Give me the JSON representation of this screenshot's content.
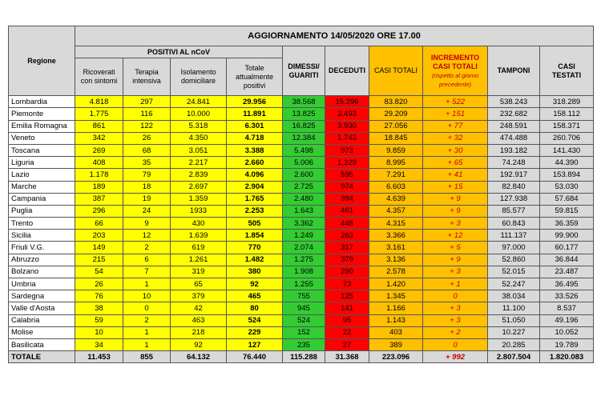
{
  "header": {
    "title": "AGGIORNAMENTO 14/05/2020 ORE 17.00",
    "region": "Regione",
    "group": "POSITIVI AL nCoV",
    "columns": [
      "Ricoverati con sintomi",
      "Terapia intensiva",
      "Isolamento domiciliare",
      "Totale attualmente positivi",
      "DIMESSI/ GUARITI",
      "DECEDUTI",
      "CASI TOTALI",
      "INCREMENTO CASI TOTALI",
      "TAMPONI",
      "CASI TESTATI"
    ],
    "increment_note": "(rispetto al giorno precedente)"
  },
  "table": {
    "rows": [
      [
        "Lombardia",
        "4.818",
        "297",
        "24.841",
        "29.956",
        "38.568",
        "15.296",
        "83.820",
        "+ 522",
        "538.243",
        "318.289"
      ],
      [
        "Piemonte",
        "1.775",
        "116",
        "10.000",
        "11.891",
        "13.825",
        "3.493",
        "29.209",
        "+ 151",
        "232.682",
        "158.112"
      ],
      [
        "Emilia Romagna",
        "861",
        "122",
        "5.318",
        "6.301",
        "16.825",
        "3.930",
        "27.056",
        "+ 77",
        "248.591",
        "158.371"
      ],
      [
        "Veneto",
        "342",
        "26",
        "4.350",
        "4.718",
        "12.384",
        "1.743",
        "18.845",
        "+ 32",
        "474.488",
        "260.706"
      ],
      [
        "Toscana",
        "269",
        "68",
        "3.051",
        "3.388",
        "5.498",
        "973",
        "9.859",
        "+ 30",
        "193.182",
        "141.430"
      ],
      [
        "Liguria",
        "408",
        "35",
        "2.217",
        "2.660",
        "5.006",
        "1.329",
        "8.995",
        "+ 65",
        "74.248",
        "44.390"
      ],
      [
        "Lazio",
        "1.178",
        "79",
        "2.839",
        "4.096",
        "2.600",
        "595",
        "7.291",
        "+ 41",
        "192.917",
        "153.894"
      ],
      [
        "Marche",
        "189",
        "18",
        "2.697",
        "2.904",
        "2.725",
        "974",
        "6.603",
        "+ 15",
        "82.840",
        "53.030"
      ],
      [
        "Campania",
        "387",
        "19",
        "1.359",
        "1.765",
        "2.480",
        "394",
        "4.639",
        "+ 9",
        "127.938",
        "57.684"
      ],
      [
        "Puglia",
        "296",
        "24",
        "1933",
        "2.253",
        "1.643",
        "461",
        "4.357",
        "+ 9",
        "85.577",
        "59.815"
      ],
      [
        "Trento",
        "66",
        "9",
        "430",
        "505",
        "3.362",
        "448",
        "4.315",
        "+ 3",
        "60.843",
        "36.359"
      ],
      [
        "Sicilia",
        "203",
        "12",
        "1.639",
        "1.854",
        "1.249",
        "263",
        "3.366",
        "+ 12",
        "111.137",
        "99.900"
      ],
      [
        "Friuli V.G.",
        "149",
        "2",
        "619",
        "770",
        "2.074",
        "317",
        "3.161",
        "+ 5",
        "97.000",
        "60.177"
      ],
      [
        "Abruzzo",
        "215",
        "6",
        "1.261",
        "1.482",
        "1.275",
        "379",
        "3.136",
        "+ 9",
        "52.860",
        "36.844"
      ],
      [
        "Bolzano",
        "54",
        "7",
        "319",
        "380",
        "1.908",
        "290",
        "2.578",
        "+ 3",
        "52.015",
        "23.487"
      ],
      [
        "Umbria",
        "26",
        "1",
        "65",
        "92",
        "1.255",
        "73",
        "1.420",
        "+ 1",
        "52.247",
        "36.495"
      ],
      [
        "Sardegna",
        "76",
        "10",
        "379",
        "465",
        "755",
        "125",
        "1.345",
        "0",
        "38.034",
        "33.526"
      ],
      [
        "Valle d'Aosta",
        "38",
        "0",
        "42",
        "80",
        "945",
        "141",
        "1.166",
        "+ 3",
        "11.100",
        "8.537"
      ],
      [
        "Calabria",
        "59",
        "2",
        "463",
        "524",
        "524",
        "95",
        "1.143",
        "+ 3",
        "51.050",
        "49.196"
      ],
      [
        "Molise",
        "10",
        "1",
        "218",
        "229",
        "152",
        "22",
        "403",
        "+ 2",
        "10.227",
        "10.052"
      ],
      [
        "Basilicata",
        "34",
        "1",
        "92",
        "127",
        "235",
        "27",
        "389",
        "0",
        "20.285",
        "19.789"
      ]
    ],
    "total": [
      "TOTALE",
      "11.453",
      "855",
      "64.132",
      "76.440",
      "115.288",
      "31.368",
      "223.096",
      "+ 992",
      "2.807.504",
      "1.820.083"
    ]
  }
}
